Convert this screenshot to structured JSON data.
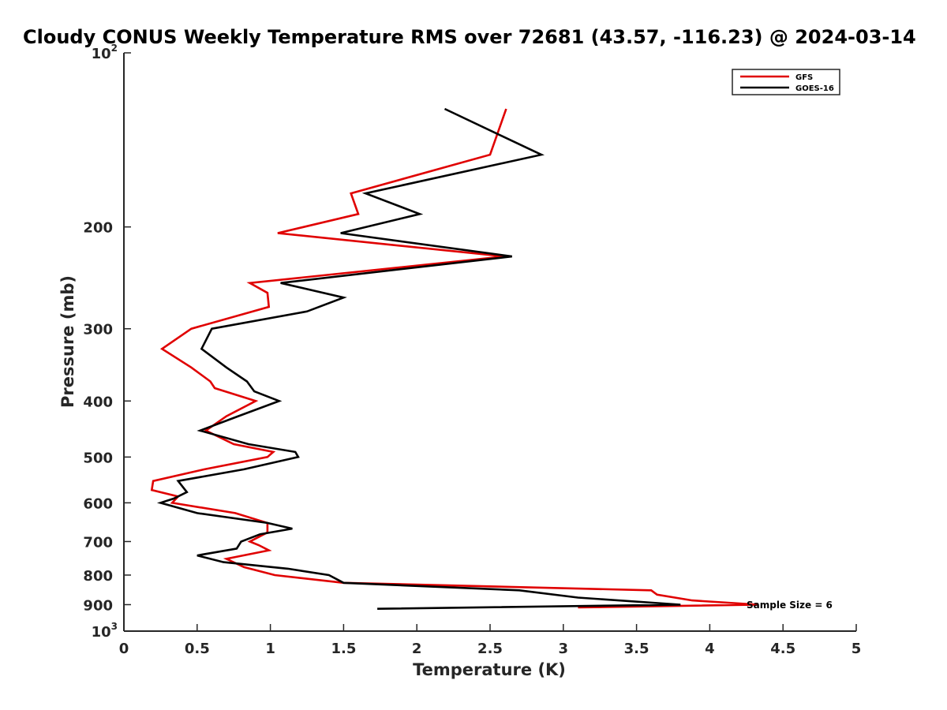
{
  "chart_data": {
    "type": "line",
    "title": "Cloudy CONUS Weekly Temperature RMS over 72681 (43.57, -116.23) @ 2024-03-14",
    "xlabel": "Temperature (K)",
    "ylabel": "Pressure (mb)",
    "xlim": [
      0,
      5
    ],
    "ylim": [
      100,
      1000
    ],
    "y_scale": "log",
    "y_reversed": true,
    "x_ticks": [
      "0",
      "0.5",
      "1",
      "1.5",
      "2",
      "2.5",
      "3",
      "3.5",
      "4",
      "4.5",
      "5"
    ],
    "x_tick_values": [
      0,
      0.5,
      1,
      1.5,
      2,
      2.5,
      3,
      3.5,
      4,
      4.5,
      5
    ],
    "y_ticks": [
      {
        "value": 100,
        "base": "10",
        "exp": "2"
      },
      {
        "value": 200,
        "label": "200"
      },
      {
        "value": 300,
        "label": "300"
      },
      {
        "value": 400,
        "label": "400"
      },
      {
        "value": 500,
        "label": "500"
      },
      {
        "value": 600,
        "label": "600"
      },
      {
        "value": 700,
        "label": "700"
      },
      {
        "value": 800,
        "label": "800"
      },
      {
        "value": 900,
        "label": "900"
      },
      {
        "value": 1000,
        "base": "10",
        "exp": "3"
      }
    ],
    "grid": false,
    "legend_position": "top-right",
    "annotation": "Sample Size = 6",
    "series": [
      {
        "name": "GFS",
        "color": "#e00000",
        "points": [
          [
            2.61,
            125
          ],
          [
            2.5,
            150
          ],
          [
            1.55,
            175
          ],
          [
            1.6,
            190
          ],
          [
            1.05,
            205
          ],
          [
            2.6,
            225
          ],
          [
            0.86,
            250
          ],
          [
            0.98,
            260
          ],
          [
            0.99,
            275
          ],
          [
            0.46,
            300
          ],
          [
            0.26,
            325
          ],
          [
            0.46,
            350
          ],
          [
            0.59,
            370
          ],
          [
            0.62,
            380
          ],
          [
            0.9,
            400
          ],
          [
            0.7,
            425
          ],
          [
            0.56,
            450
          ],
          [
            0.75,
            475
          ],
          [
            1.02,
            490
          ],
          [
            0.98,
            500
          ],
          [
            0.55,
            525
          ],
          [
            0.2,
            550
          ],
          [
            0.19,
            570
          ],
          [
            0.37,
            585
          ],
          [
            0.33,
            600
          ],
          [
            0.76,
            625
          ],
          [
            0.98,
            650
          ],
          [
            0.98,
            675
          ],
          [
            0.86,
            700
          ],
          [
            0.92,
            710
          ],
          [
            0.99,
            725
          ],
          [
            0.7,
            750
          ],
          [
            0.82,
            775
          ],
          [
            1.03,
            800
          ],
          [
            1.5,
            825
          ],
          [
            3.6,
            850
          ],
          [
            3.64,
            865
          ],
          [
            3.88,
            885
          ],
          [
            4.33,
            900
          ],
          [
            3.1,
            910
          ]
        ]
      },
      {
        "name": "GOES-16",
        "color": "#000000",
        "points": [
          [
            2.19,
            125
          ],
          [
            2.85,
            150
          ],
          [
            1.65,
            175
          ],
          [
            2.02,
            190
          ],
          [
            1.48,
            205
          ],
          [
            2.65,
            225
          ],
          [
            1.07,
            250
          ],
          [
            1.5,
            265
          ],
          [
            1.25,
            280
          ],
          [
            0.6,
            300
          ],
          [
            0.53,
            325
          ],
          [
            0.7,
            350
          ],
          [
            0.84,
            370
          ],
          [
            0.89,
            385
          ],
          [
            1.06,
            400
          ],
          [
            0.78,
            425
          ],
          [
            0.52,
            450
          ],
          [
            0.85,
            475
          ],
          [
            1.17,
            490
          ],
          [
            1.19,
            500
          ],
          [
            0.82,
            525
          ],
          [
            0.37,
            550
          ],
          [
            0.43,
            575
          ],
          [
            0.34,
            590
          ],
          [
            0.25,
            600
          ],
          [
            0.5,
            625
          ],
          [
            0.98,
            650
          ],
          [
            1.15,
            665
          ],
          [
            0.93,
            680
          ],
          [
            0.8,
            700
          ],
          [
            0.77,
            720
          ],
          [
            0.5,
            740
          ],
          [
            0.68,
            760
          ],
          [
            1.12,
            780
          ],
          [
            1.4,
            800
          ],
          [
            1.5,
            825
          ],
          [
            2.7,
            850
          ],
          [
            3.1,
            875
          ],
          [
            3.8,
            900
          ],
          [
            1.73,
            915
          ]
        ]
      }
    ]
  }
}
